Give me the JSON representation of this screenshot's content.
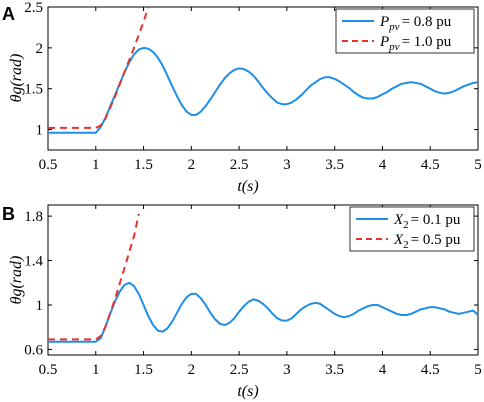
{
  "chart_data": [
    {
      "type": "line",
      "panel_label": "A",
      "xlabel": "t(s)",
      "ylabel": "θg(rad)",
      "xlim": [
        0.5,
        5
      ],
      "ylim": [
        0.75,
        2.5
      ],
      "xticks": [
        "0.5",
        "1",
        "1.5",
        "2",
        "2.5",
        "3",
        "3.5",
        "4",
        "4.5",
        "5"
      ],
      "yticks": [
        "1",
        "1.5",
        "2",
        "2.5"
      ],
      "grid": false,
      "legend_position": "top-right",
      "series": [
        {
          "name": "Ppv = 0.8 pu",
          "legend_main": "P",
          "legend_sub": "pv",
          "legend_value": "= 0.8 pu",
          "color": "#1f8fe6",
          "dash": "solid",
          "x": [
            0.5,
            1.0,
            1.05,
            1.1,
            1.15,
            1.2,
            1.25,
            1.3,
            1.35,
            1.4,
            1.45,
            1.5,
            1.55,
            1.6,
            1.65,
            1.7,
            1.75,
            1.8,
            1.85,
            1.9,
            1.95,
            2.0,
            2.05,
            2.1,
            2.15,
            2.2,
            2.25,
            2.3,
            2.35,
            2.4,
            2.45,
            2.5,
            2.55,
            2.6,
            2.65,
            2.7,
            2.75,
            2.8,
            2.85,
            2.9,
            2.95,
            3.0,
            3.05,
            3.1,
            3.15,
            3.2,
            3.25,
            3.3,
            3.35,
            3.4,
            3.45,
            3.5,
            3.55,
            3.6,
            3.65,
            3.7,
            3.75,
            3.8,
            3.85,
            3.9,
            3.95,
            4.0,
            4.05,
            4.1,
            4.15,
            4.2,
            4.25,
            4.3,
            4.35,
            4.4,
            4.45,
            4.5,
            4.55,
            4.6,
            4.65,
            4.7,
            4.75,
            4.8,
            4.85,
            4.9,
            4.95,
            5.0
          ],
          "y": [
            0.96,
            0.96,
            1.03,
            1.14,
            1.28,
            1.42,
            1.56,
            1.7,
            1.82,
            1.92,
            1.98,
            2.0,
            1.99,
            1.95,
            1.88,
            1.78,
            1.66,
            1.53,
            1.41,
            1.3,
            1.22,
            1.18,
            1.18,
            1.22,
            1.29,
            1.37,
            1.46,
            1.55,
            1.63,
            1.69,
            1.73,
            1.75,
            1.74,
            1.71,
            1.66,
            1.59,
            1.51,
            1.44,
            1.38,
            1.33,
            1.31,
            1.31,
            1.33,
            1.37,
            1.42,
            1.48,
            1.54,
            1.58,
            1.62,
            1.64,
            1.64,
            1.62,
            1.59,
            1.55,
            1.51,
            1.46,
            1.42,
            1.39,
            1.38,
            1.38,
            1.4,
            1.43,
            1.46,
            1.5,
            1.53,
            1.56,
            1.57,
            1.58,
            1.57,
            1.56,
            1.53,
            1.5,
            1.47,
            1.45,
            1.44,
            1.45,
            1.47,
            1.5,
            1.53,
            1.55,
            1.57,
            1.58
          ]
        },
        {
          "name": "Ppv = 1.0 pu",
          "legend_main": "P",
          "legend_sub": "pv",
          "legend_value": "= 1.0 pu",
          "color": "#e8322a",
          "dash": "dashed",
          "x": [
            0.5,
            1.0,
            1.05,
            1.1,
            1.2,
            1.3,
            1.4,
            1.5,
            1.55
          ],
          "y": [
            1.02,
            1.02,
            1.05,
            1.13,
            1.4,
            1.7,
            2.0,
            2.32,
            2.5
          ]
        }
      ]
    },
    {
      "type": "line",
      "panel_label": "B",
      "xlabel": "t(s)",
      "ylabel": "θg(rad)",
      "xlim": [
        0.5,
        5
      ],
      "ylim": [
        0.55,
        1.9
      ],
      "xticks": [
        "0.5",
        "1",
        "1.5",
        "2",
        "2.5",
        "3",
        "3.5",
        "4",
        "4.5",
        "5"
      ],
      "yticks": [
        "0.6",
        "1",
        "1.4",
        "1.8"
      ],
      "grid": false,
      "legend_position": "top-right",
      "series": [
        {
          "name": "X2 = 0.1 pu",
          "legend_main": "X",
          "legend_sub": "2",
          "legend_value": "= 0.1 pu",
          "color": "#1f8fe6",
          "dash": "solid",
          "x": [
            0.5,
            1.0,
            1.05,
            1.1,
            1.15,
            1.2,
            1.25,
            1.3,
            1.35,
            1.4,
            1.45,
            1.5,
            1.55,
            1.6,
            1.65,
            1.7,
            1.75,
            1.8,
            1.85,
            1.9,
            1.95,
            2.0,
            2.05,
            2.1,
            2.15,
            2.2,
            2.25,
            2.3,
            2.35,
            2.4,
            2.45,
            2.5,
            2.55,
            2.6,
            2.65,
            2.7,
            2.75,
            2.8,
            2.85,
            2.9,
            2.95,
            3.0,
            3.05,
            3.1,
            3.15,
            3.2,
            3.25,
            3.3,
            3.35,
            3.4,
            3.45,
            3.5,
            3.55,
            3.6,
            3.65,
            3.7,
            3.75,
            3.8,
            3.85,
            3.9,
            3.95,
            4.0,
            4.05,
            4.1,
            4.15,
            4.2,
            4.25,
            4.3,
            4.35,
            4.4,
            4.45,
            4.5,
            4.55,
            4.6,
            4.65,
            4.7,
            4.75,
            4.8,
            4.85,
            4.9,
            4.95,
            5.0
          ],
          "y": [
            0.67,
            0.67,
            0.7,
            0.8,
            0.92,
            1.03,
            1.12,
            1.18,
            1.2,
            1.17,
            1.1,
            1.0,
            0.9,
            0.82,
            0.77,
            0.76,
            0.79,
            0.85,
            0.93,
            1.01,
            1.07,
            1.1,
            1.1,
            1.06,
            1.0,
            0.93,
            0.87,
            0.83,
            0.82,
            0.84,
            0.88,
            0.94,
            0.99,
            1.03,
            1.05,
            1.04,
            1.01,
            0.97,
            0.92,
            0.88,
            0.86,
            0.86,
            0.88,
            0.92,
            0.96,
            0.99,
            1.01,
            1.02,
            1.01,
            0.98,
            0.95,
            0.92,
            0.9,
            0.89,
            0.9,
            0.92,
            0.95,
            0.97,
            0.99,
            1.0,
            1.0,
            0.98,
            0.96,
            0.94,
            0.92,
            0.91,
            0.91,
            0.92,
            0.94,
            0.96,
            0.97,
            0.98,
            0.98,
            0.97,
            0.96,
            0.94,
            0.93,
            0.92,
            0.93,
            0.94,
            0.95,
            0.91
          ]
        },
        {
          "name": "X2 = 0.5 pu",
          "legend_main": "X",
          "legend_sub": "2",
          "legend_value": "= 0.5 pu",
          "color": "#e8322a",
          "dash": "dashed",
          "x": [
            0.5,
            1.0,
            1.05,
            1.1,
            1.2,
            1.3,
            1.4,
            1.45
          ],
          "y": [
            0.69,
            0.69,
            0.72,
            0.8,
            1.05,
            1.33,
            1.62,
            1.82
          ]
        }
      ]
    }
  ]
}
